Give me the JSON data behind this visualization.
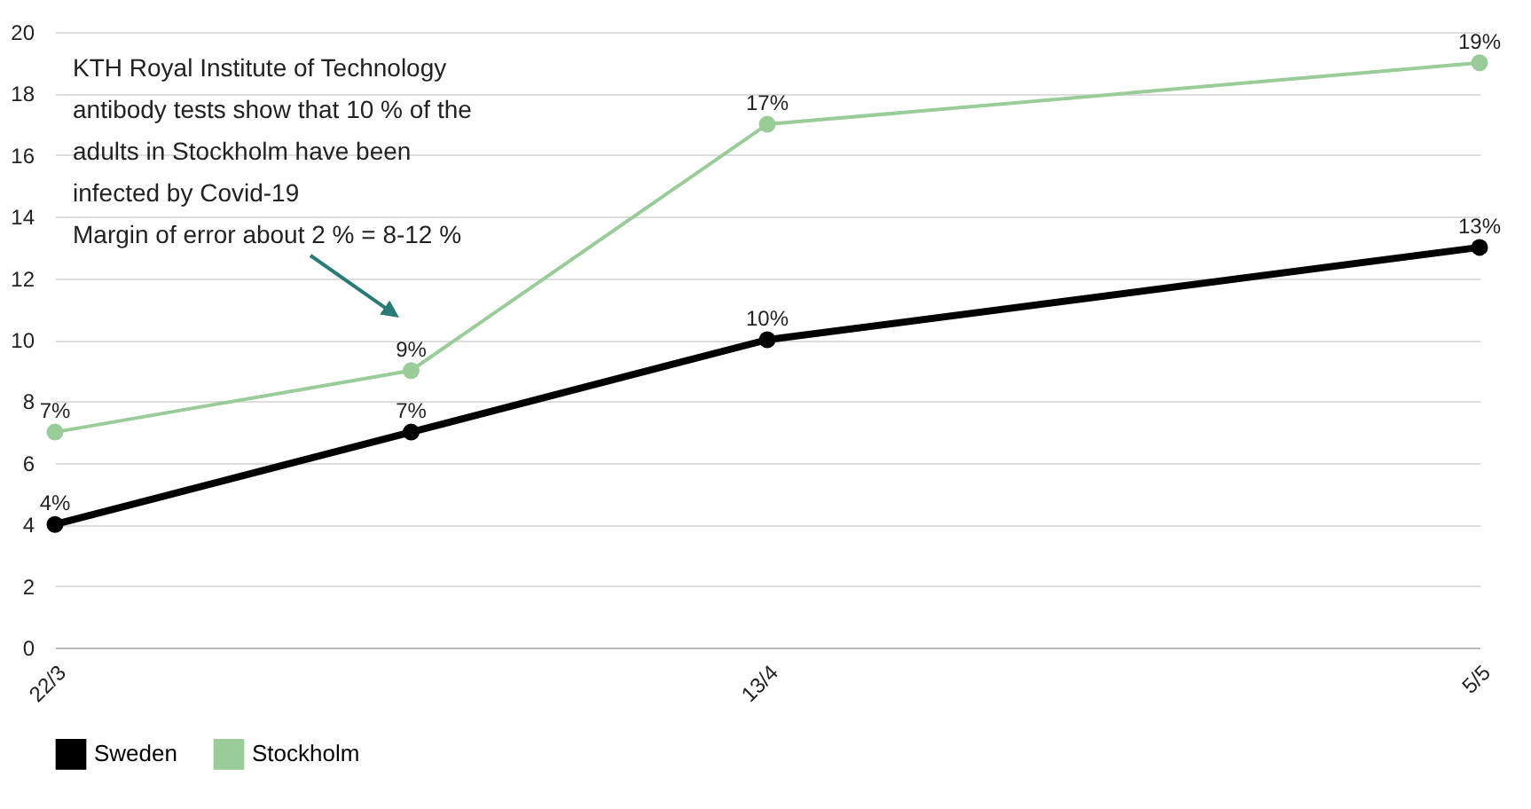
{
  "chart_data": {
    "type": "line",
    "x": [
      "--03-22",
      "--04-02",
      "--04-13",
      "--05-05"
    ],
    "xlim": [
      "--03-22",
      "--05-05"
    ],
    "xticks": [
      {
        "value": "--03-22",
        "label": "22/3"
      },
      {
        "value": "--04-13",
        "label": "13/4"
      },
      {
        "value": "--05-05",
        "label": "5/5"
      }
    ],
    "ylim": [
      0,
      20
    ],
    "yticks": [
      0,
      2,
      4,
      6,
      8,
      10,
      12,
      14,
      16,
      18,
      20
    ],
    "series": [
      {
        "name": "Sweden",
        "color": "#000000",
        "values": [
          4,
          7,
          10,
          13
        ],
        "value_labels": [
          "4%",
          "7%",
          "10%",
          "13%"
        ]
      },
      {
        "name": "Stockholm",
        "color": "#99cc99",
        "values": [
          7,
          9,
          17,
          19
        ],
        "value_labels": [
          "7%",
          "9%",
          "17%",
          "19%"
        ]
      }
    ],
    "annotations": [
      "KTH Royal Institute of Technology antibody tests show that 10 % of the adults in Stockholm have been infected by Covid-19\nMargin of error about 2 % = 8-12 %"
    ],
    "grid": "y",
    "legend": "bottom left",
    "marker": "circle",
    "line_style": "solid"
  }
}
